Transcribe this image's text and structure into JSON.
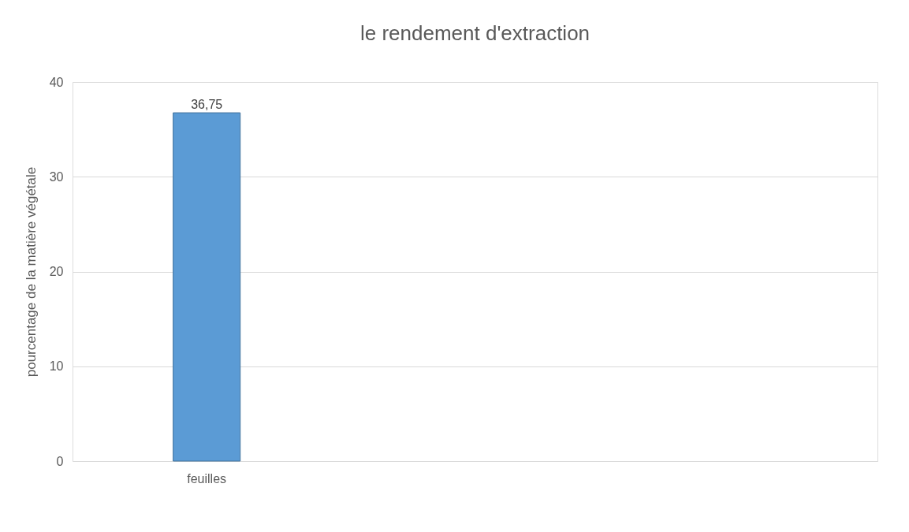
{
  "chart_data": {
    "type": "bar",
    "title": "le rendement d'extraction",
    "ylabel": "pourcentage de la matière végétale",
    "categories": [
      "feuilles"
    ],
    "values": [
      36.75
    ],
    "color": "#5b9bd5",
    "value_labels": [
      "36,75"
    ],
    "ylim": [
      0,
      40
    ],
    "yticks": [
      0,
      10,
      20,
      30,
      40
    ],
    "grid": "y"
  }
}
